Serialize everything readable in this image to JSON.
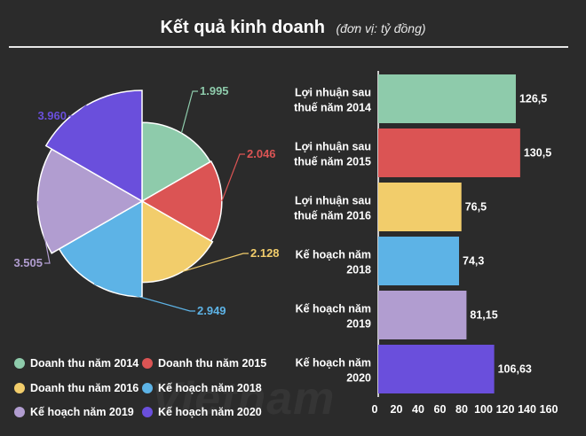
{
  "title": "Kết quả kinh doanh",
  "subtitle": "(đơn vị: tỷ đồng)",
  "watermark": "Vietnam",
  "chart_data": [
    {
      "type": "pie",
      "variant": "polar-area",
      "categories": [
        "Doanh thu năm 2014",
        "Doanh thu năm 2015",
        "Doanh thu năm 2016",
        "Kế hoạch năm 2018",
        "Kế hoạch năm 2019",
        "Kế hoạch năm 2020"
      ],
      "values": [
        1995,
        2046,
        2128,
        2949,
        3505,
        3960
      ],
      "labels": [
        "1.995",
        "2.046",
        "2.128",
        "2.949",
        "3.505",
        "3.960"
      ],
      "colors": [
        "#8ecbab",
        "#db5454",
        "#f2cd6b",
        "#5db3e6",
        "#b19dd0",
        "#6a4fdc"
      ],
      "legend": "bottom-left"
    },
    {
      "type": "bar",
      "orientation": "horizontal",
      "categories": [
        "Lợi nhuận sau thuế năm 2014",
        "Lợi nhuận sau thuế năm 2015",
        "Lợi nhuận sau thuế năm 2016",
        "Kế hoạch năm 2018",
        "Kế hoạch năm 2019",
        "Kế hoạch năm 2020"
      ],
      "category_lines": [
        [
          "Lợi nhuận sau",
          "thuế năm 2014"
        ],
        [
          "Lợi nhuận sau",
          "thuế năm 2015"
        ],
        [
          "Lợi nhuận sau",
          "thuế năm 2016"
        ],
        [
          "Kế hoạch năm",
          "2018"
        ],
        [
          "Kế hoạch năm",
          "2019"
        ],
        [
          "Kế hoạch năm",
          "2020"
        ]
      ],
      "values": [
        126.5,
        130.5,
        76.5,
        74.3,
        81.15,
        106.63
      ],
      "labels": [
        "126,5",
        "130,5",
        "76,5",
        "74,3",
        "81,15",
        "106,63"
      ],
      "colors": [
        "#8ecbab",
        "#db5454",
        "#f2cd6b",
        "#5db3e6",
        "#b19dd0",
        "#6a4fdc"
      ],
      "xlim": [
        0,
        160
      ],
      "xticks": [
        "0",
        "20",
        "40",
        "60",
        "80",
        "100",
        "120",
        "140",
        "160"
      ],
      "grid": false
    }
  ]
}
